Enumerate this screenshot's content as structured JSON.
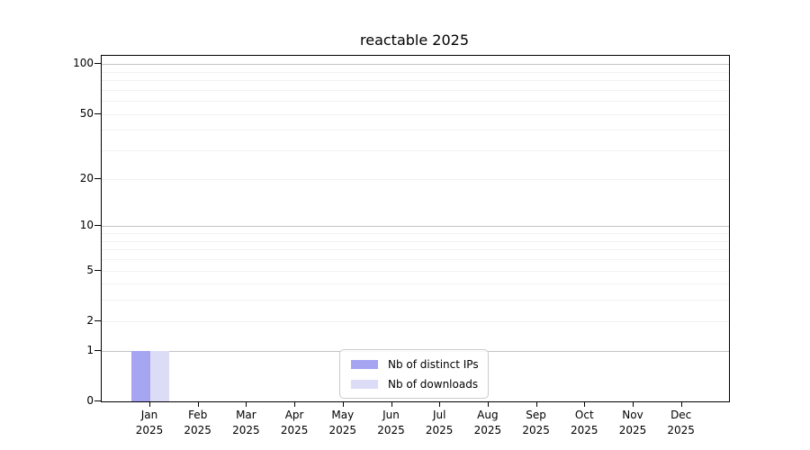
{
  "chart_data": {
    "type": "bar",
    "title": "reactable 2025",
    "categories": [
      "Jan 2025",
      "Feb 2025",
      "Mar 2025",
      "Apr 2025",
      "May 2025",
      "Jun 2025",
      "Jul 2025",
      "Aug 2025",
      "Sep 2025",
      "Oct 2025",
      "Nov 2025",
      "Dec 2025"
    ],
    "series": [
      {
        "name": "Nb of distinct IPs",
        "color": "#a5a5f2",
        "values": [
          1,
          0,
          0,
          0,
          0,
          0,
          0,
          0,
          0,
          0,
          0,
          0
        ]
      },
      {
        "name": "Nb of downloads",
        "color": "#dcdcf7",
        "values": [
          1,
          0,
          0,
          0,
          0,
          0,
          0,
          0,
          0,
          0,
          0,
          0
        ]
      }
    ],
    "y_axis": {
      "scale": "log1p",
      "tick_labels": [
        0,
        1,
        2,
        5,
        10,
        20,
        50,
        100
      ],
      "major_gridlines": [
        1,
        10,
        100
      ],
      "minor_gridlines": [
        2,
        3,
        4,
        5,
        6,
        7,
        8,
        9,
        20,
        30,
        40,
        50,
        60,
        70,
        80,
        90
      ],
      "max": 112
    },
    "legend": {
      "position": "lower center"
    },
    "grid": true,
    "colors": {
      "grid_major": "#c4c4c4",
      "grid_minor": "#f1f1f1",
      "frame": "#000000",
      "background": "#ffffff"
    }
  }
}
